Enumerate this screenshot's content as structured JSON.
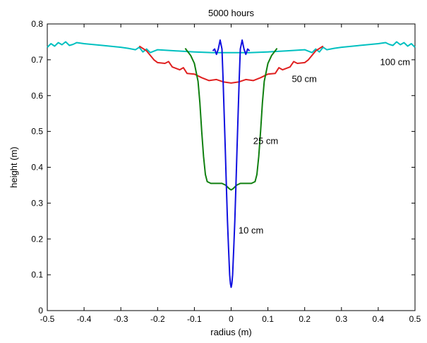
{
  "chart_data": {
    "type": "line",
    "title": "5000 hours",
    "xlabel": "radius (m)",
    "ylabel": "height (m)",
    "xlim": [
      -0.5,
      0.5
    ],
    "ylim": [
      0,
      0.8
    ],
    "xticks": [
      -0.5,
      -0.4,
      -0.3,
      -0.2,
      -0.1,
      0,
      0.1,
      0.2,
      0.3,
      0.4,
      0.5
    ],
    "xtick_labels": [
      "-0.5",
      "-0.4",
      "-0.3",
      "-0.2",
      "-0.1",
      "0",
      "0.1",
      "0.2",
      "0.3",
      "0.4",
      "0.5"
    ],
    "yticks": [
      0,
      0.1,
      0.2,
      0.3,
      0.4,
      0.5,
      0.6,
      0.7,
      0.8
    ],
    "ytick_labels": [
      "0",
      "0.1",
      "0.2",
      "0.3",
      "0.4",
      "0.5",
      "0.6",
      "0.7",
      "0.8"
    ],
    "grid": false,
    "series": [
      {
        "color": "#00c0c0",
        "points": [
          [
            -0.5,
            0.735
          ],
          [
            -0.49,
            0.745
          ],
          [
            -0.48,
            0.738
          ],
          [
            -0.47,
            0.748
          ],
          [
            -0.46,
            0.742
          ],
          [
            -0.45,
            0.75
          ],
          [
            -0.44,
            0.74
          ],
          [
            -0.43,
            0.743
          ],
          [
            -0.42,
            0.748
          ],
          [
            -0.4,
            0.745
          ],
          [
            -0.35,
            0.74
          ],
          [
            -0.3,
            0.735
          ],
          [
            -0.28,
            0.732
          ],
          [
            -0.26,
            0.728
          ],
          [
            -0.25,
            0.735
          ],
          [
            -0.24,
            0.722
          ],
          [
            -0.23,
            0.73
          ],
          [
            -0.22,
            0.72
          ],
          [
            -0.2,
            0.728
          ],
          [
            -0.15,
            0.725
          ],
          [
            -0.1,
            0.722
          ],
          [
            -0.05,
            0.72
          ],
          [
            0,
            0.72
          ],
          [
            0.05,
            0.72
          ],
          [
            0.1,
            0.722
          ],
          [
            0.15,
            0.725
          ],
          [
            0.2,
            0.728
          ],
          [
            0.22,
            0.72
          ],
          [
            0.23,
            0.73
          ],
          [
            0.24,
            0.722
          ],
          [
            0.25,
            0.735
          ],
          [
            0.26,
            0.728
          ],
          [
            0.28,
            0.732
          ],
          [
            0.3,
            0.735
          ],
          [
            0.35,
            0.74
          ],
          [
            0.4,
            0.745
          ],
          [
            0.42,
            0.748
          ],
          [
            0.43,
            0.743
          ],
          [
            0.44,
            0.74
          ],
          [
            0.45,
            0.75
          ],
          [
            0.46,
            0.742
          ],
          [
            0.47,
            0.748
          ],
          [
            0.48,
            0.738
          ],
          [
            0.49,
            0.745
          ],
          [
            0.5,
            0.735
          ]
        ]
      },
      {
        "color": "#e02020",
        "points": [
          [
            -0.25,
            0.738
          ],
          [
            -0.23,
            0.725
          ],
          [
            -0.21,
            0.7
          ],
          [
            -0.2,
            0.692
          ],
          [
            -0.18,
            0.69
          ],
          [
            -0.17,
            0.695
          ],
          [
            -0.16,
            0.68
          ],
          [
            -0.14,
            0.672
          ],
          [
            -0.13,
            0.678
          ],
          [
            -0.12,
            0.662
          ],
          [
            -0.1,
            0.66
          ],
          [
            -0.08,
            0.65
          ],
          [
            -0.06,
            0.642
          ],
          [
            -0.04,
            0.645
          ],
          [
            -0.02,
            0.638
          ],
          [
            0,
            0.635
          ],
          [
            0.02,
            0.638
          ],
          [
            0.04,
            0.645
          ],
          [
            0.06,
            0.642
          ],
          [
            0.08,
            0.65
          ],
          [
            0.1,
            0.66
          ],
          [
            0.12,
            0.662
          ],
          [
            0.13,
            0.678
          ],
          [
            0.14,
            0.672
          ],
          [
            0.16,
            0.68
          ],
          [
            0.17,
            0.695
          ],
          [
            0.18,
            0.69
          ],
          [
            0.2,
            0.692
          ],
          [
            0.21,
            0.7
          ],
          [
            0.23,
            0.725
          ],
          [
            0.25,
            0.738
          ]
        ]
      },
      {
        "color": "#108010",
        "points": [
          [
            -0.125,
            0.732
          ],
          [
            -0.11,
            0.712
          ],
          [
            -0.1,
            0.69
          ],
          [
            -0.09,
            0.64
          ],
          [
            -0.085,
            0.58
          ],
          [
            -0.08,
            0.5
          ],
          [
            -0.075,
            0.43
          ],
          [
            -0.07,
            0.38
          ],
          [
            -0.065,
            0.36
          ],
          [
            -0.055,
            0.355
          ],
          [
            -0.04,
            0.355
          ],
          [
            -0.025,
            0.355
          ],
          [
            -0.015,
            0.35
          ],
          [
            -0.005,
            0.34
          ],
          [
            0,
            0.337
          ],
          [
            0.005,
            0.34
          ],
          [
            0.015,
            0.35
          ],
          [
            0.025,
            0.355
          ],
          [
            0.04,
            0.355
          ],
          [
            0.055,
            0.355
          ],
          [
            0.065,
            0.36
          ],
          [
            0.07,
            0.38
          ],
          [
            0.075,
            0.43
          ],
          [
            0.08,
            0.5
          ],
          [
            0.085,
            0.58
          ],
          [
            0.09,
            0.64
          ],
          [
            0.1,
            0.69
          ],
          [
            0.11,
            0.712
          ],
          [
            0.125,
            0.732
          ]
        ]
      },
      {
        "color": "#1010e0",
        "points": [
          [
            -0.05,
            0.725
          ],
          [
            -0.045,
            0.73
          ],
          [
            -0.04,
            0.715
          ],
          [
            -0.035,
            0.73
          ],
          [
            -0.03,
            0.755
          ],
          [
            -0.025,
            0.73
          ],
          [
            -0.022,
            0.65
          ],
          [
            -0.019,
            0.55
          ],
          [
            -0.016,
            0.45
          ],
          [
            -0.013,
            0.35
          ],
          [
            -0.01,
            0.25
          ],
          [
            -0.007,
            0.17
          ],
          [
            -0.004,
            0.1
          ],
          [
            -0.002,
            0.075
          ],
          [
            0,
            0.065
          ],
          [
            0.002,
            0.075
          ],
          [
            0.004,
            0.1
          ],
          [
            0.007,
            0.17
          ],
          [
            0.01,
            0.25
          ],
          [
            0.013,
            0.35
          ],
          [
            0.016,
            0.45
          ],
          [
            0.019,
            0.55
          ],
          [
            0.022,
            0.65
          ],
          [
            0.025,
            0.73
          ],
          [
            0.03,
            0.755
          ],
          [
            0.035,
            0.73
          ],
          [
            0.04,
            0.715
          ],
          [
            0.045,
            0.73
          ],
          [
            0.05,
            0.725
          ]
        ]
      }
    ],
    "annotations": [
      {
        "text": "100 cm",
        "x": 0.405,
        "y": 0.685
      },
      {
        "text": "50 cm",
        "x": 0.165,
        "y": 0.638
      },
      {
        "text": "25 cm",
        "x": 0.06,
        "y": 0.465
      },
      {
        "text": "10 cm",
        "x": 0.02,
        "y": 0.215
      }
    ]
  }
}
